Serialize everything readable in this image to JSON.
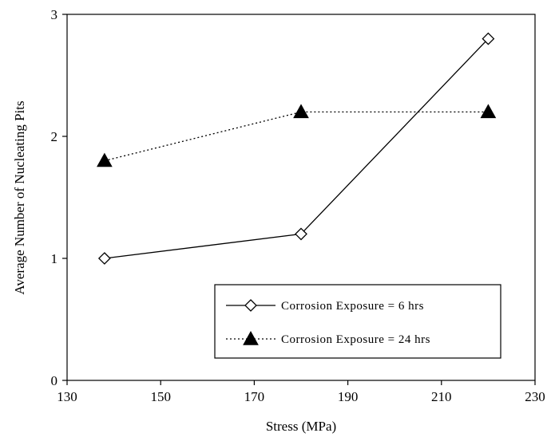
{
  "chart_data": {
    "type": "line",
    "xlabel": "Stress (MPa)",
    "ylabel": "Average Number of Nucleating Pits",
    "xlim": [
      130,
      230
    ],
    "ylim": [
      0,
      3
    ],
    "xticks": [
      130,
      150,
      170,
      190,
      210,
      230
    ],
    "yticks": [
      0,
      1,
      2,
      3
    ],
    "grid": false,
    "legend_position": "bottom-right",
    "series": [
      {
        "name": "Corrosion Exposure = 6 hrs",
        "x": [
          138,
          180,
          220
        ],
        "y": [
          1.0,
          1.2,
          2.8
        ],
        "marker": "open-diamond",
        "line": "solid",
        "color": "#000000"
      },
      {
        "name": "Corrosion Exposure = 24 hrs",
        "x": [
          138,
          180,
          220
        ],
        "y": [
          1.8,
          2.2,
          2.2
        ],
        "marker": "filled-triangle",
        "line": "dotted",
        "color": "#000000"
      }
    ]
  }
}
